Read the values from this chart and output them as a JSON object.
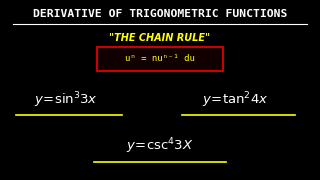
{
  "background_color": "#000000",
  "title_text": "DERIVATIVE OF TRIGONOMETRIC FUNCTIONS",
  "title_color": "#ffffff",
  "subtitle_text": "\"THE CHAIN RULE\"",
  "subtitle_color": "#ffff00",
  "formula_text": "uⁿ = nuⁿ⁻¹ du",
  "formula_box_color": "#cc0000",
  "formula_box_fill": "#110000",
  "formula_text_color": "#ffff00",
  "expr_color": "#ffffff",
  "underline_color": "#ffff00",
  "figsize": [
    3.2,
    1.8
  ],
  "dpi": 100
}
